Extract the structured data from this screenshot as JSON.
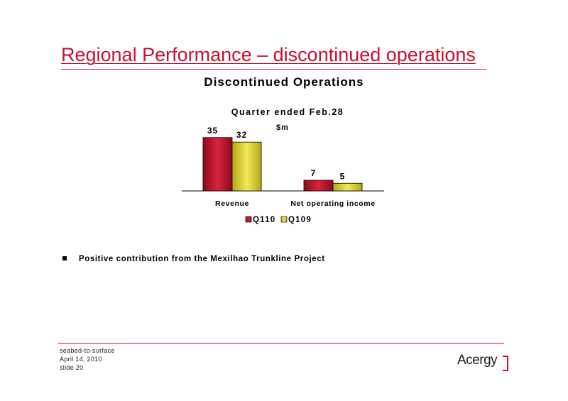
{
  "slide": {
    "title": "Regional Performance – discontinued operations",
    "chart_title": "Discontinued Operations",
    "bullet": "Positive contribution from the Mexilhao Trunkline Project",
    "accent_color": "#c8102e"
  },
  "footer": {
    "line1": "seabed-to-surface",
    "line2": "April 14, 2010",
    "line3": "slide 20",
    "logo": "Acergy"
  },
  "chart_data": {
    "type": "bar",
    "title": "Quarter ended Feb.28",
    "unit_label": "$m",
    "categories": [
      "Revenue",
      "Net operating income"
    ],
    "series": [
      {
        "name": "Q110",
        "values": [
          35,
          7
        ],
        "color": "#c8102e"
      },
      {
        "name": "Q109",
        "values": [
          32,
          5
        ],
        "color": "#e3d730"
      }
    ],
    "ylim": [
      0,
      40
    ],
    "grid": false,
    "legend_position": "bottom"
  }
}
